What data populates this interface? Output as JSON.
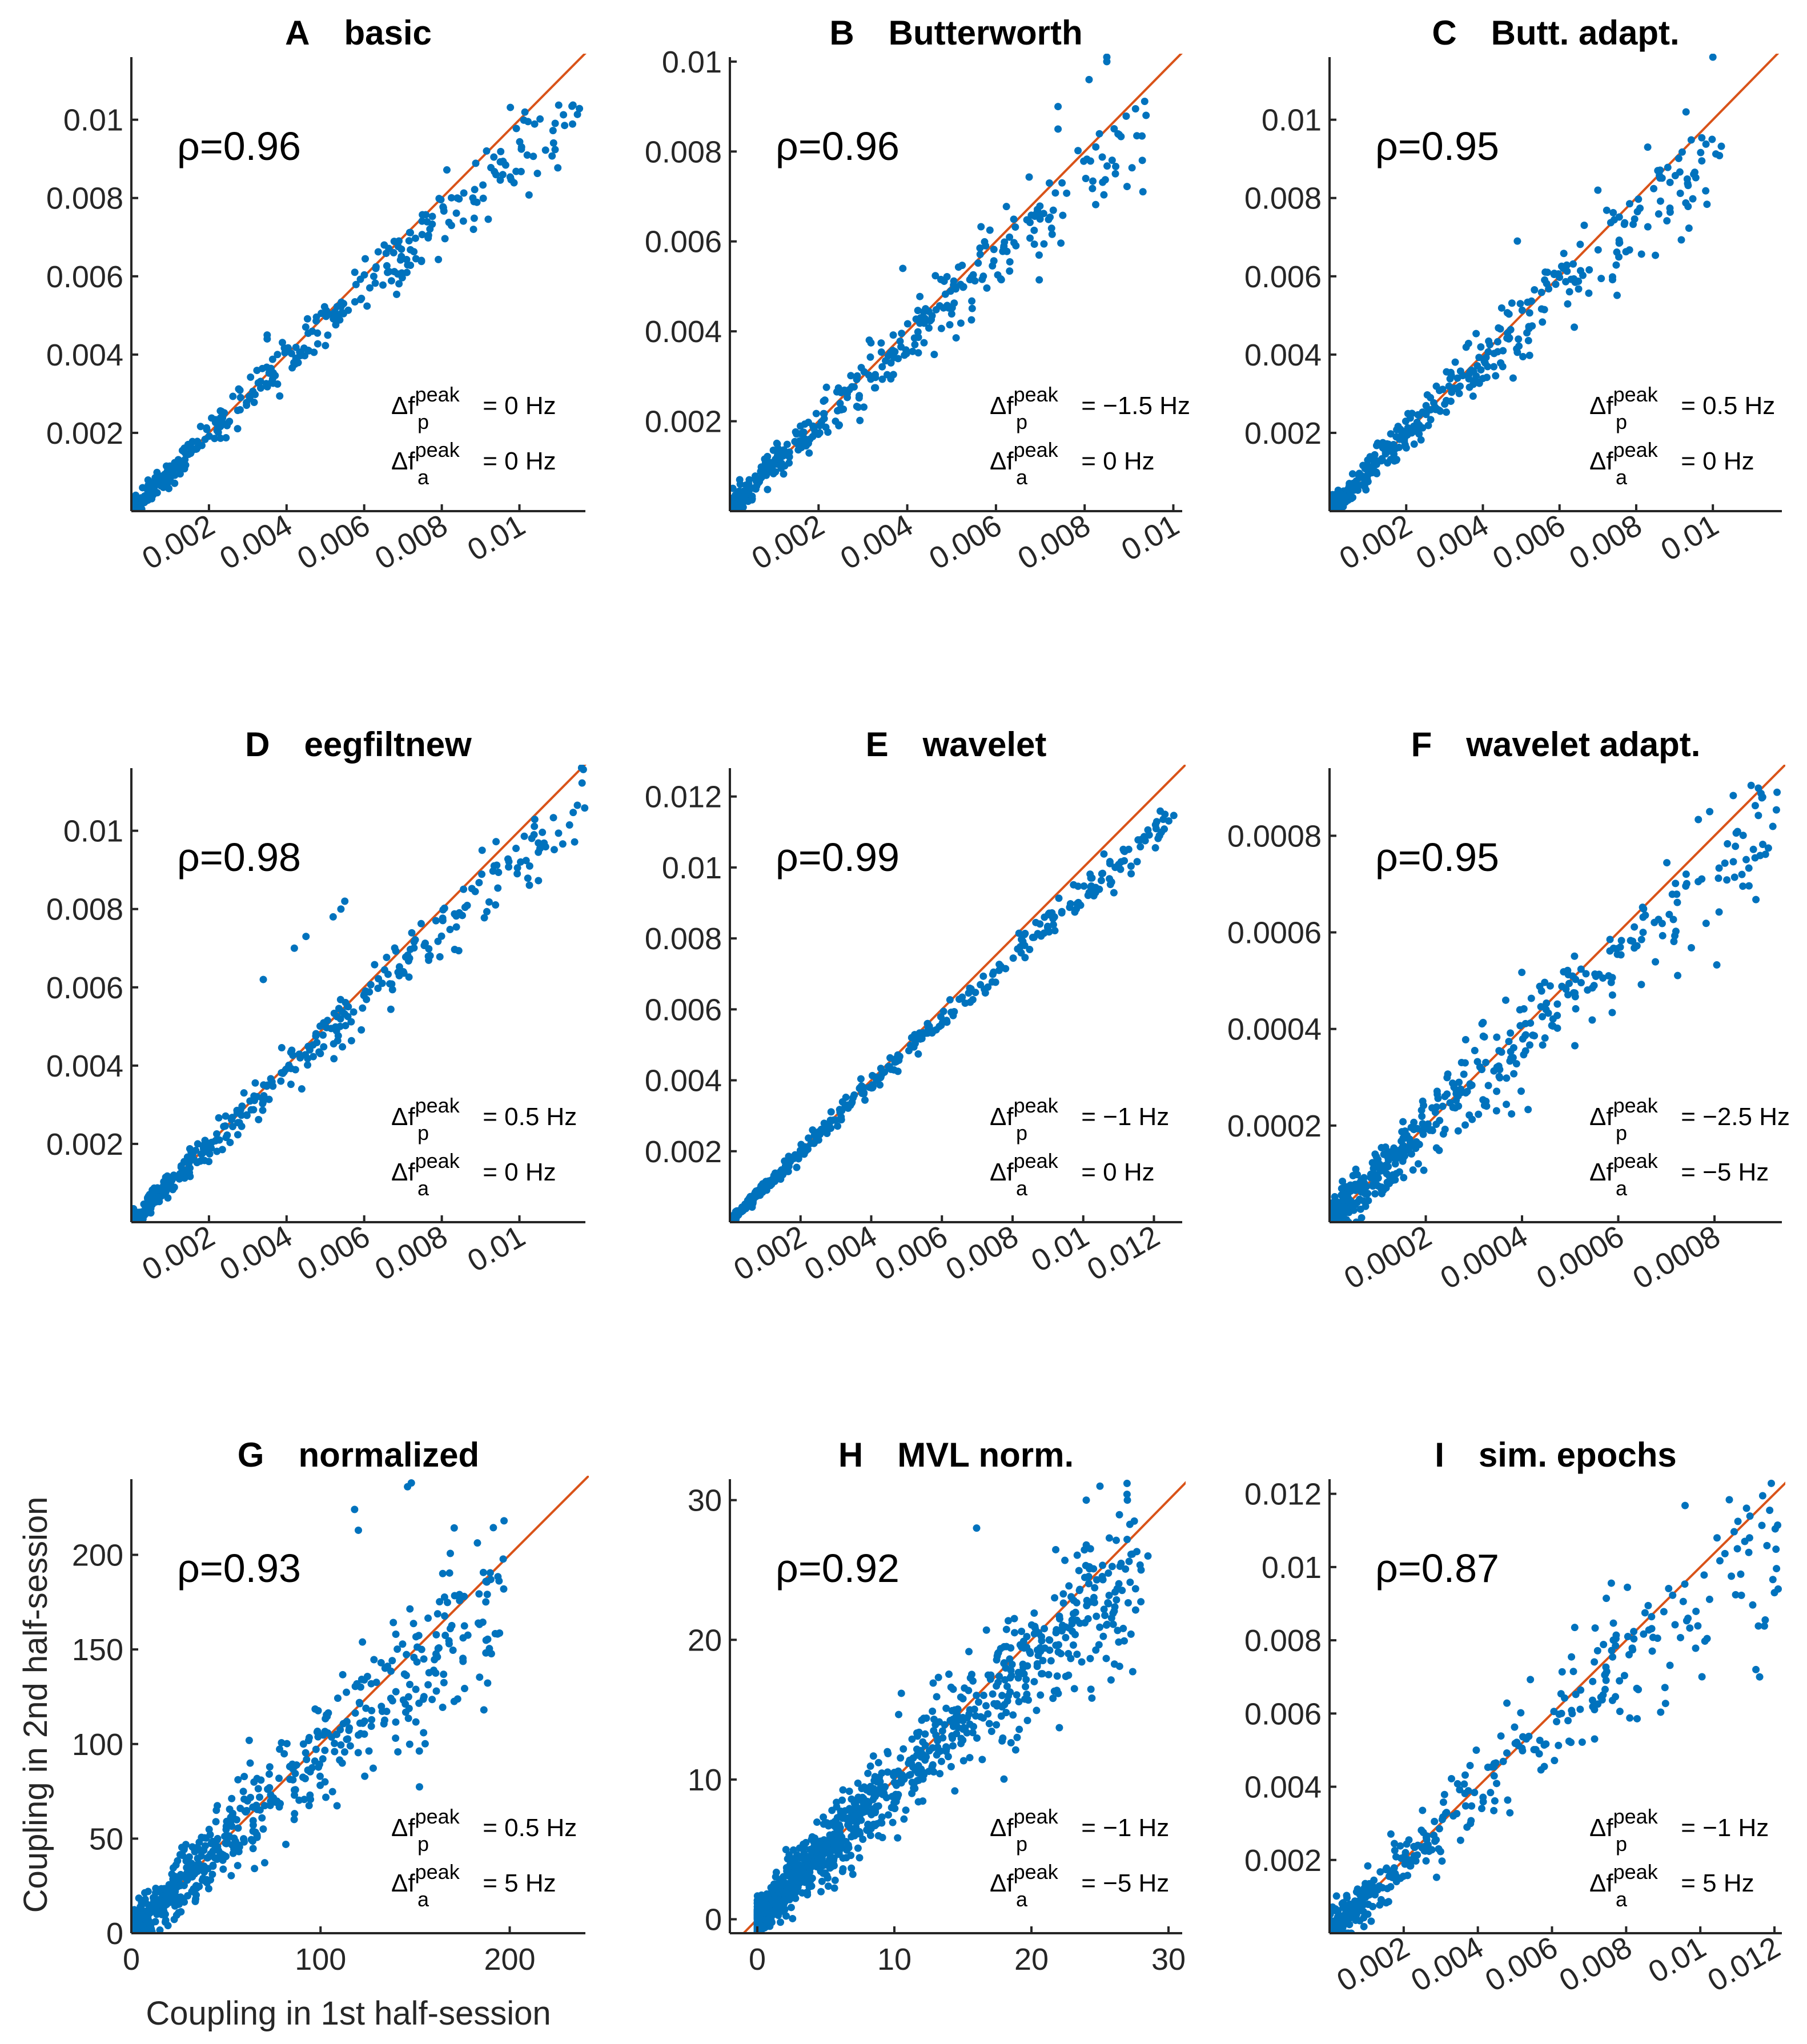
{
  "figure": {
    "xlabel": "Coupling in 1st half-session",
    "ylabel": "Coupling in 2nd half-session",
    "point_color": "#0072BD",
    "line_color": "#D95319"
  },
  "chart_data": [
    {
      "type": "scatter",
      "letter": "A",
      "name": "basic",
      "rho": "ρ=0.96",
      "ann_p": "= 0 Hz",
      "ann_a": "= 0 Hz",
      "xlim": [
        0,
        0.0117
      ],
      "ylim": [
        0,
        0.0116
      ],
      "xticks": [
        0.002,
        0.004,
        0.006,
        0.008,
        0.01
      ],
      "xtick_labels": [
        "0.002",
        "0.004",
        "0.006",
        "0.008",
        "0.01"
      ],
      "yticks": [
        0.002,
        0.004,
        0.006,
        0.008,
        0.01
      ],
      "ytick_labels": [
        "0.002",
        "0.004",
        "0.006",
        "0.008",
        "0.01"
      ],
      "xtick_rotation": 30,
      "spread": 0.00035,
      "outliers": [
        [
          0.0035,
          0.0045
        ],
        [
          0.0035,
          0.0044
        ],
        [
          0.0063,
          0.0062
        ],
        [
          0.0084,
          0.008
        ],
        [
          0.0088,
          0.008
        ]
      ],
      "n_points": 420,
      "x_max_data": 0.0116
    },
    {
      "type": "scatter",
      "letter": "B",
      "name": "Butterworth",
      "rho": "ρ=0.96",
      "ann_p": "= −1.5 Hz",
      "ann_a": "= 0 Hz",
      "xlim": [
        0,
        0.0102
      ],
      "ylim": [
        0,
        0.0101
      ],
      "xticks": [
        0.002,
        0.004,
        0.006,
        0.008,
        0.01
      ],
      "xtick_labels": [
        "0.002",
        "0.004",
        "0.006",
        "0.008",
        "0.01"
      ],
      "yticks": [
        0.002,
        0.004,
        0.006,
        0.008,
        0.01
      ],
      "ytick_labels": [
        "0.002",
        "0.004",
        "0.006",
        "0.008",
        "0.01"
      ],
      "xtick_rotation": 30,
      "spread": 0.0004,
      "outliers": [
        [
          0.0085,
          0.0101
        ],
        [
          0.0085,
          0.01
        ],
        [
          0.0081,
          0.0096
        ],
        [
          0.0074,
          0.009
        ],
        [
          0.0074,
          0.0085
        ],
        [
          0.0039,
          0.0054
        ]
      ],
      "n_points": 420,
      "x_max_data": 0.0094
    },
    {
      "type": "scatter",
      "letter": "C",
      "name": "Butt. adapt.",
      "rho": "ρ=0.95",
      "ann_p": "= 0.5 Hz",
      "ann_a": "= 0 Hz",
      "xlim": [
        0,
        0.0118
      ],
      "ylim": [
        0,
        0.0116
      ],
      "xticks": [
        0.002,
        0.004,
        0.006,
        0.008,
        0.01
      ],
      "xtick_labels": [
        "0.002",
        "0.004",
        "0.006",
        "0.008",
        "0.01"
      ],
      "yticks": [
        0.002,
        0.004,
        0.006,
        0.008,
        0.01
      ],
      "ytick_labels": [
        "0.002",
        "0.004",
        "0.006",
        "0.008",
        "0.01"
      ],
      "xtick_rotation": 30,
      "spread": 0.00045,
      "outliers": [
        [
          0.01,
          0.0116
        ],
        [
          0.0093,
          0.0102
        ],
        [
          0.0083,
          0.0093
        ],
        [
          0.007,
          0.0082
        ],
        [
          0.0049,
          0.0069
        ]
      ],
      "n_points": 420,
      "x_max_data": 0.0103
    },
    {
      "type": "scatter",
      "letter": "D",
      "name": "eegfiltnew",
      "rho": "ρ=0.98",
      "ann_p": "= 0.5 Hz",
      "ann_a": "= 0 Hz",
      "xlim": [
        0,
        0.0117
      ],
      "ylim": [
        0,
        0.0116
      ],
      "xticks": [
        0.002,
        0.004,
        0.006,
        0.008,
        0.01
      ],
      "xtick_labels": [
        "0.002",
        "0.004",
        "0.006",
        "0.008",
        "0.01"
      ],
      "yticks": [
        0.002,
        0.004,
        0.006,
        0.008,
        0.01
      ],
      "ytick_labels": [
        "0.002",
        "0.004",
        "0.006",
        "0.008",
        "0.01"
      ],
      "xtick_rotation": 30,
      "spread": 0.00035,
      "outliers": [
        [
          0.0055,
          0.0082
        ],
        [
          0.0054,
          0.008
        ],
        [
          0.0052,
          0.0078
        ],
        [
          0.0045,
          0.0073
        ],
        [
          0.0042,
          0.007
        ],
        [
          0.0034,
          0.0062
        ]
      ],
      "n_points": 420,
      "x_max_data": 0.0117
    },
    {
      "type": "scatter",
      "letter": "E",
      "name": "wavelet",
      "rho": "ρ=0.99",
      "ann_p": "= −1 Hz",
      "ann_a": "= 0 Hz",
      "xlim": [
        0,
        0.0128
      ],
      "ylim": [
        0,
        0.0128
      ],
      "xticks": [
        0.002,
        0.004,
        0.006,
        0.008,
        0.01,
        0.012
      ],
      "xtick_labels": [
        "0.002",
        "0.004",
        "0.006",
        "0.008",
        "0.01",
        "0.012"
      ],
      "yticks": [
        0.002,
        0.004,
        0.006,
        0.008,
        0.01,
        0.012
      ],
      "ytick_labels": [
        "0.002",
        "0.004",
        "0.006",
        "0.008",
        "0.01",
        "0.012"
      ],
      "xtick_rotation": 30,
      "spread": 0.0002,
      "outliers": [],
      "n_points": 460,
      "x_max_data": 0.0126
    },
    {
      "type": "scatter",
      "letter": "F",
      "name": "wavelet adapt.",
      "rho": "ρ=0.95",
      "ann_p": "= −2.5 Hz",
      "ann_a": "= −5 Hz",
      "xlim": [
        0,
        0.00094
      ],
      "ylim": [
        0,
        0.00094
      ],
      "xticks": [
        0.0002,
        0.0004,
        0.0006,
        0.0008
      ],
      "xtick_labels": [
        "0.0002",
        "0.0004",
        "0.0006",
        "0.0008"
      ],
      "yticks": [
        0.0002,
        0.0004,
        0.0006,
        0.0008
      ],
      "ytick_labels": [
        "0.0002",
        "0.0004",
        "0.0006",
        "0.0008"
      ],
      "xtick_rotation": 30,
      "spread": 5.5e-05,
      "outliers": [
        [
          0.0009,
          0.00088
        ],
        [
          0.00079,
          0.00085
        ],
        [
          0.00093,
          0.00089
        ],
        [
          0.00045,
          0.00044
        ],
        [
          0.00058,
          0.00051
        ]
      ],
      "n_points": 520,
      "x_max_data": 0.00093
    },
    {
      "type": "scatter",
      "letter": "G",
      "name": "normalized",
      "rho": "ρ=0.93",
      "ann_p": "= 0.5 Hz",
      "ann_a": "= 5 Hz",
      "xlim": [
        0,
        240
      ],
      "ylim": [
        0,
        240
      ],
      "xticks": [
        0,
        100,
        200
      ],
      "xtick_labels": [
        "0",
        "100",
        "200"
      ],
      "yticks": [
        0,
        50,
        100,
        150,
        200
      ],
      "ytick_labels": [
        "0",
        "50",
        "100",
        "150",
        "200"
      ],
      "xtick_rotation": 0,
      "spread": 16,
      "outliers": [
        [
          148,
          238
        ],
        [
          146,
          236
        ],
        [
          118,
          224
        ],
        [
          197,
          218
        ],
        [
          120,
          213
        ],
        [
          190,
          187
        ]
      ],
      "n_points": 700,
      "x_max_data": 197
    },
    {
      "type": "scatter",
      "letter": "H",
      "name": "MVL norm.",
      "rho": "ρ=0.92",
      "ann_p": "= −1 Hz",
      "ann_a": "= −5 Hz",
      "xlim": [
        -2,
        31
      ],
      "ylim": [
        -1,
        31.5
      ],
      "xticks": [
        0,
        10,
        20,
        30
      ],
      "xtick_labels": [
        "0",
        "10",
        "20",
        "30"
      ],
      "yticks": [
        0,
        10,
        20,
        30
      ],
      "ytick_labels": [
        "0",
        "10",
        "20",
        "30"
      ],
      "xtick_rotation": 0,
      "spread": 2.0,
      "outliers": [
        [
          25,
          31
        ],
        [
          24,
          30
        ],
        [
          27,
          30
        ],
        [
          16,
          28
        ],
        [
          28,
          25
        ],
        [
          28.5,
          26
        ]
      ],
      "n_points": 1100,
      "x_max_data": 28
    },
    {
      "type": "scatter",
      "letter": "I",
      "name": "sim. epochs",
      "rho": "ρ=0.87",
      "ann_p": "= −1 Hz",
      "ann_a": "= 5 Hz",
      "xlim": [
        0,
        0.0122
      ],
      "ylim": [
        0,
        0.0124
      ],
      "xticks": [
        0.002,
        0.004,
        0.006,
        0.008,
        0.01,
        0.012
      ],
      "xtick_labels": [
        "0.002",
        "0.004",
        "0.006",
        "0.008",
        "0.01",
        "0.012"
      ],
      "yticks": [
        0.002,
        0.004,
        0.006,
        0.008,
        0.01,
        0.012
      ],
      "ytick_labels": [
        "0.002",
        "0.004",
        "0.006",
        "0.008",
        "0.01",
        "0.012"
      ],
      "xtick_rotation": 30,
      "spread": 0.0008,
      "outliers": [
        [
          0.0112,
          0.0107
        ],
        [
          0.011,
          0.0105
        ],
        [
          0.0121,
          0.0094
        ],
        [
          0.012,
          0.0093
        ],
        [
          0.0115,
          0.0072
        ],
        [
          0.0116,
          0.007
        ]
      ],
      "n_points": 420,
      "x_max_data": 0.0121
    }
  ]
}
